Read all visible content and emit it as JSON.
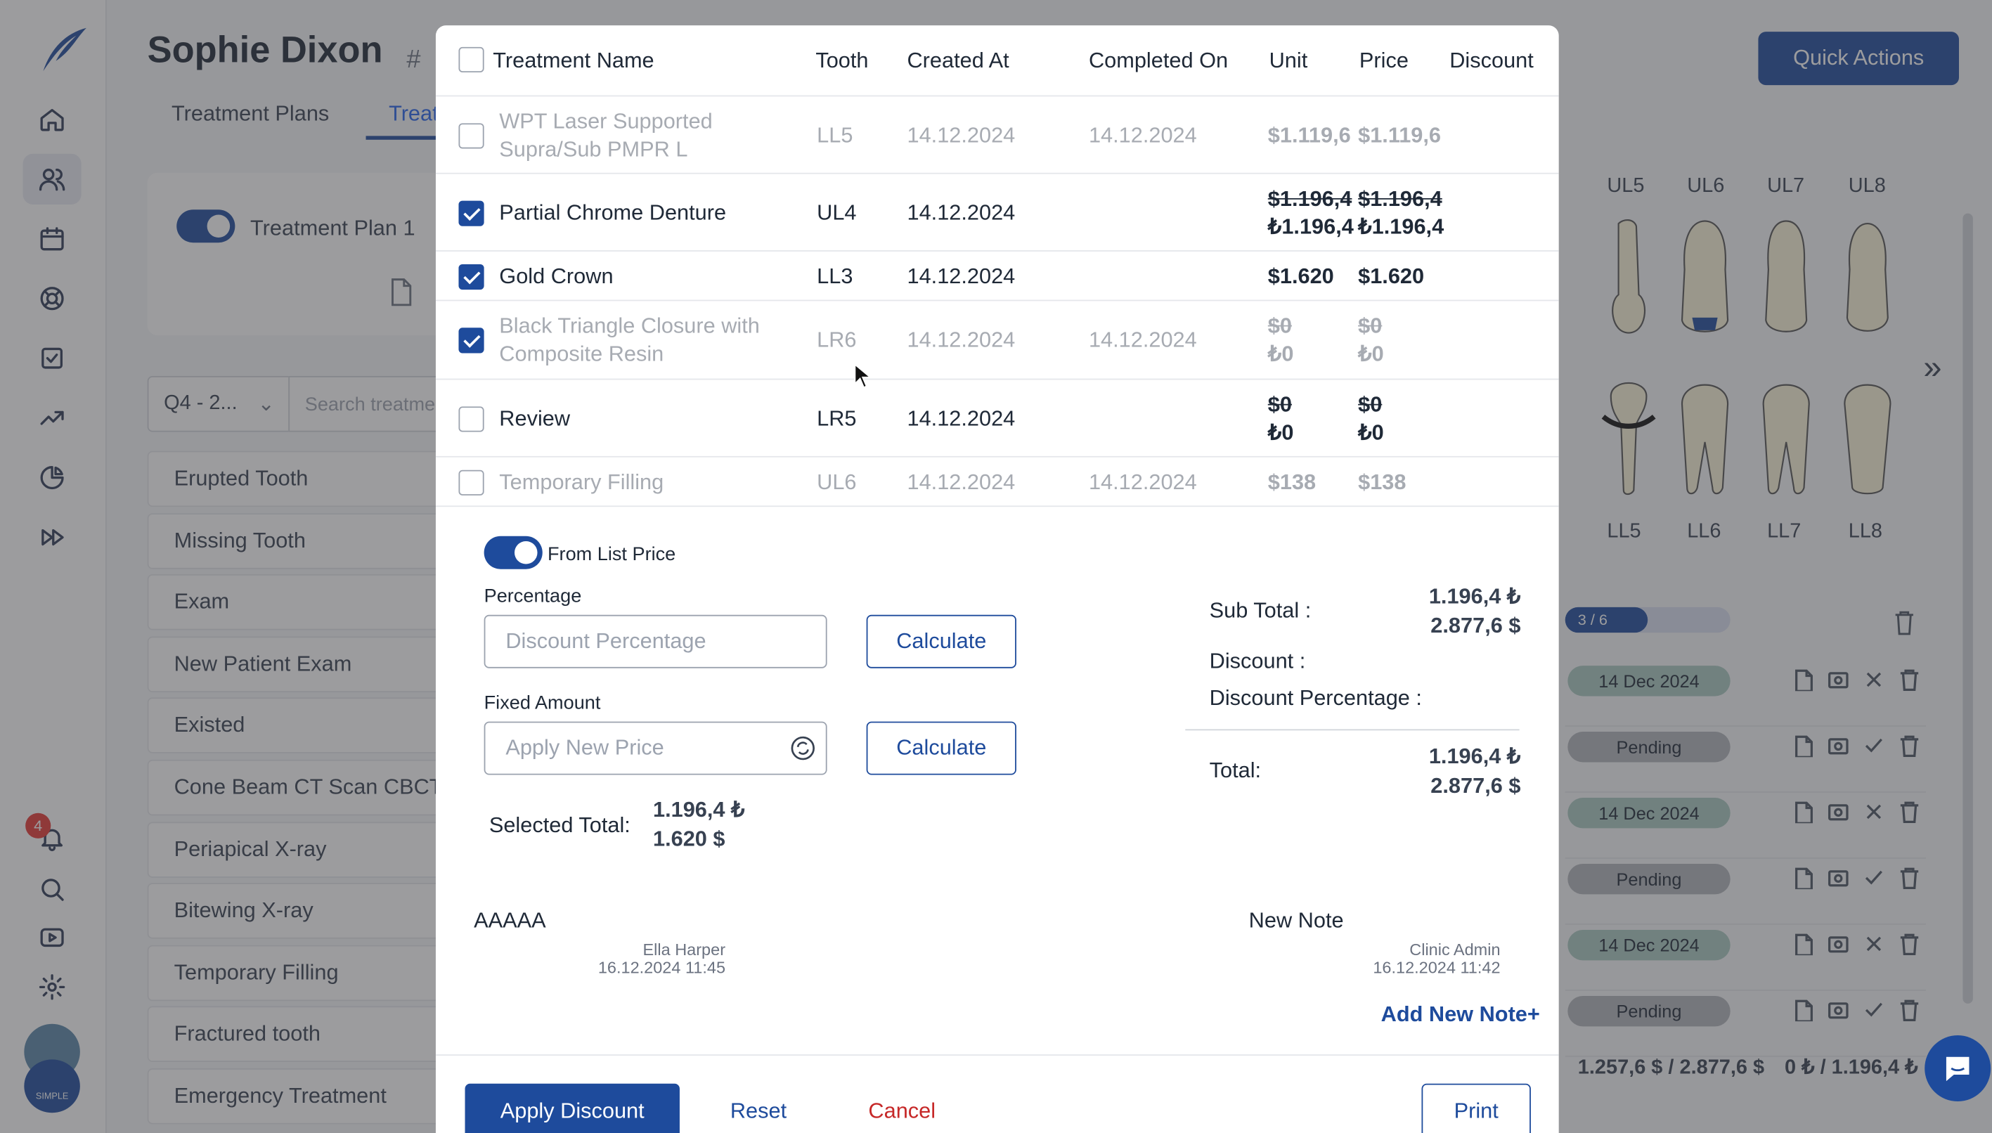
{
  "sidebar": {
    "notification_count": "4",
    "avatar_caption": "SIMPLE DENT"
  },
  "header": {
    "patient_name": "Sophie Dixon",
    "hash": "#",
    "tabs": [
      "Treatment Plans",
      "Treat"
    ],
    "quick_actions": "Quick Actions"
  },
  "plan": {
    "name": "Treatment Plan 1"
  },
  "filters": {
    "period": "Q4 - 2...",
    "search_placeholder": "Search treatme"
  },
  "treatment_list": [
    "Erupted Tooth",
    "Missing Tooth",
    "Exam",
    "New Patient Exam",
    "Existed",
    "Cone Beam CT Scan CBCT",
    "Periapical X-ray",
    "Bitewing X-ray",
    "Temporary Filling",
    "Fractured tooth",
    "Emergency Treatment"
  ],
  "chart": {
    "upper_labels": [
      "UL5",
      "UL6",
      "UL7",
      "UL8"
    ],
    "lower_labels": [
      "LL5",
      "LL6",
      "LL7",
      "LL8"
    ],
    "progress": "3 / 6",
    "progress_fraction": 0.5,
    "statuses": [
      "14 Dec 2024",
      "Pending",
      "14 Dec 2024",
      "Pending",
      "14 Dec 2024",
      "Pending"
    ],
    "totals": "1.257,6 $ / 2.877,6 $",
    "totals_right": "0 ₺ / 1.196,4 ₺"
  },
  "modal": {
    "columns": [
      "Treatment Name",
      "Tooth",
      "Created At",
      "Completed On",
      "Unit",
      "Price",
      "Discount"
    ],
    "rows": [
      {
        "name": [
          "WPT Laser Supported",
          "Supra/Sub PMPR L"
        ],
        "tooth": "LL5",
        "created": "14.12.2024",
        "completed": "14.12.2024",
        "unit": [
          "$1.119,6"
        ],
        "price": [
          "$1.119,6"
        ],
        "checked": false,
        "dim": true,
        "strike": false
      },
      {
        "name": [
          "Partial Chrome Denture"
        ],
        "tooth": "UL4",
        "created": "14.12.2024",
        "completed": "",
        "unit": [
          "$1.196,4",
          "₺1.196,4"
        ],
        "price": [
          "$1.196,4",
          "₺1.196,4"
        ],
        "checked": true,
        "dim": false,
        "strike": true
      },
      {
        "name": [
          "Gold Crown"
        ],
        "tooth": "LL3",
        "created": "14.12.2024",
        "completed": "",
        "unit": [
          "$1.620"
        ],
        "price": [
          "$1.620"
        ],
        "checked": true,
        "dim": false,
        "strike": false
      },
      {
        "name": [
          "Black Triangle Closure with",
          "Composite Resin"
        ],
        "tooth": "LR6",
        "created": "14.12.2024",
        "completed": "14.12.2024",
        "unit": [
          "$0",
          "₺0"
        ],
        "price": [
          "$0",
          "₺0"
        ],
        "checked": true,
        "dim": true,
        "strike": true
      },
      {
        "name": [
          "Review"
        ],
        "tooth": "LR5",
        "created": "14.12.2024",
        "completed": "",
        "unit": [
          "$0",
          "₺0"
        ],
        "price": [
          "$0",
          "₺0"
        ],
        "checked": false,
        "dim": false,
        "strike": true
      },
      {
        "name": [
          "Temporary Filling"
        ],
        "tooth": "UL6",
        "created": "14.12.2024",
        "completed": "14.12.2024",
        "unit": [
          "$138"
        ],
        "price": [
          "$138"
        ],
        "checked": false,
        "dim": true,
        "strike": false
      }
    ],
    "from_list_price": "From List Price",
    "percentage_label": "Percentage",
    "percentage_placeholder": "Discount Percentage",
    "fixed_label": "Fixed Amount",
    "fixed_placeholder": "Apply New Price",
    "calculate": "Calculate",
    "selected_total_label": "Selected Total:",
    "selected_total_try": "1.196,4 ₺",
    "selected_total_usd": "1.620 $",
    "sub_total_label": "Sub Total :",
    "sub_total_try": "1.196,4 ₺",
    "sub_total_usd": "2.877,6 $",
    "discount_label": "Discount :",
    "discount_percentage_label": "Discount Percentage :",
    "total_label": "Total:",
    "total_try": "1.196,4 ₺",
    "total_usd": "2.877,6 $",
    "notes": [
      {
        "text": "AAAAA",
        "author": "Ella Harper",
        "date": "16.12.2024 11:45"
      },
      {
        "text": "New Note",
        "author": "Clinic Admin",
        "date": "16.12.2024 11:42"
      }
    ],
    "add_note": "Add New Note+",
    "apply_discount": "Apply Discount",
    "reset": "Reset",
    "cancel": "Cancel",
    "print": "Print"
  },
  "colors": {
    "primary": "#1e4b9c",
    "danger": "#c62828",
    "overlay": "rgba(58,58,62,0.5)"
  }
}
